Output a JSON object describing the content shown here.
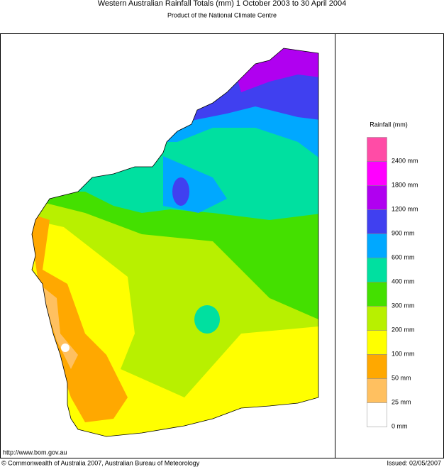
{
  "header": {
    "title": "Western Australian Rainfall Totals (mm) 1 October 2003 to 30 April 2004",
    "subtitle": "Product of the National Climate Centre"
  },
  "legend": {
    "title": "Rainfall (mm)",
    "items": [
      {
        "label": "2400 mm",
        "color": "#ff4ca6"
      },
      {
        "label": "1800 mm",
        "color": "#ff00ff"
      },
      {
        "label": "1200 mm",
        "color": "#b000f0"
      },
      {
        "label": "900 mm",
        "color": "#4040f0"
      },
      {
        "label": "600 mm",
        "color": "#00a8ff"
      },
      {
        "label": "400 mm",
        "color": "#00e0a0"
      },
      {
        "label": "300 mm",
        "color": "#44e000"
      },
      {
        "label": "200 mm",
        "color": "#b8f000"
      },
      {
        "label": "100 mm",
        "color": "#ffff00"
      },
      {
        "label": "50 mm",
        "color": "#ffa800"
      },
      {
        "label": "25 mm",
        "color": "#ffc060"
      },
      {
        "label": "0 mm",
        "color": "#ffffff"
      }
    ]
  },
  "footer": {
    "url": "http://www.bom.gov.au",
    "copyright": "© Commonwealth of Australia 2007, Australian Bureau of Meteorology",
    "issued": "Issued: 02/05/2007"
  }
}
